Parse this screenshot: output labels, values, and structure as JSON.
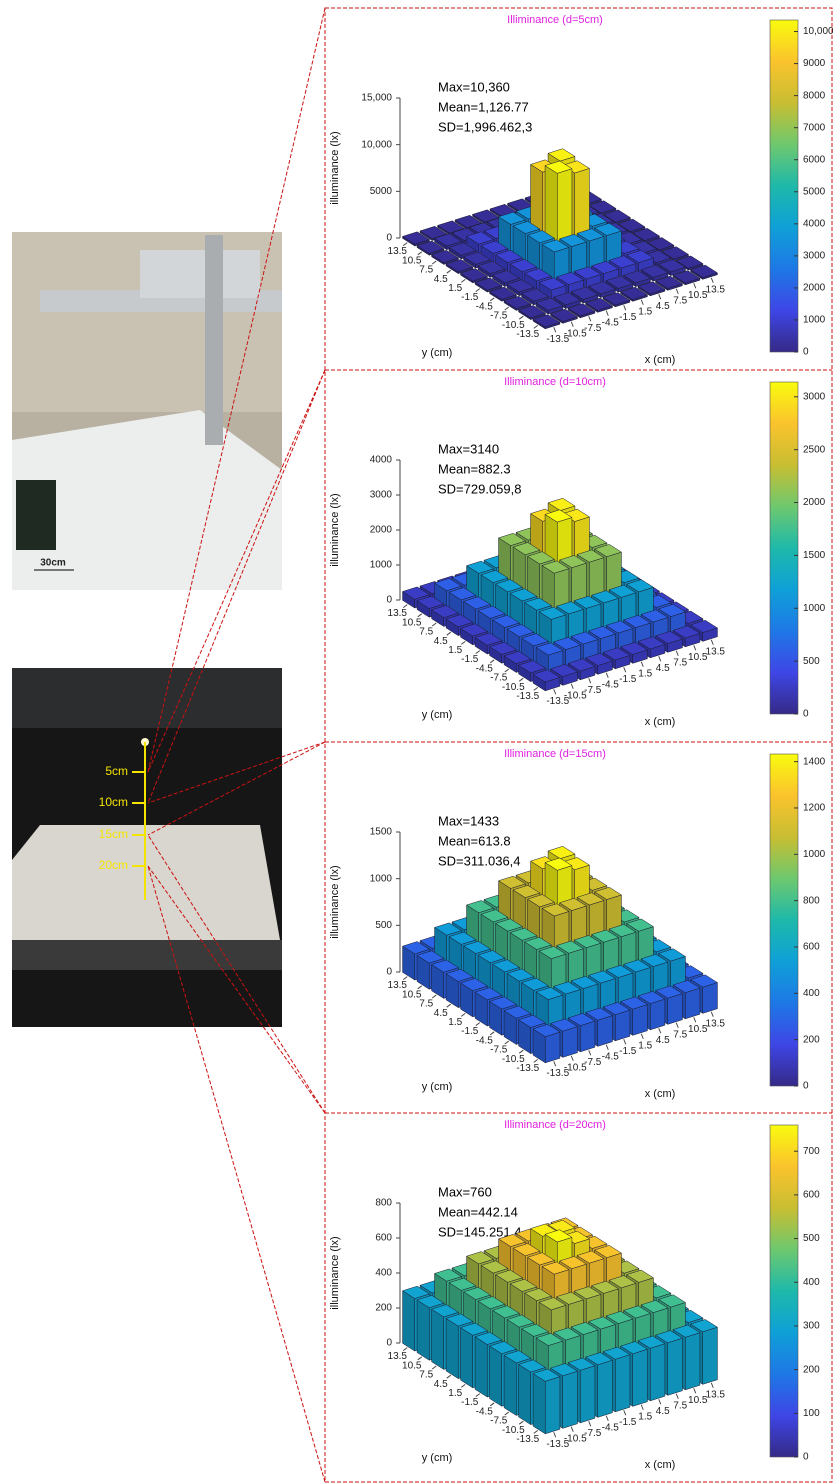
{
  "left_photos": {
    "scale_label": "30cm",
    "height_labels": [
      "5cm",
      "10cm",
      "15cm",
      "20cm"
    ]
  },
  "chart_data": [
    {
      "type": "bar3d",
      "title": "Illiminance (d=5cm)",
      "annotations": [
        "Max=10,360",
        "Mean=1,126.77",
        "SD=1,996.462,3"
      ],
      "xlabel": "x (cm)",
      "ylabel": "y (cm)",
      "zlabel": "illuminance (lx)",
      "x": [
        -13.5,
        -10.5,
        -7.5,
        -4.5,
        -1.5,
        1.5,
        4.5,
        7.5,
        10.5,
        13.5
      ],
      "y": [
        -13.5,
        -10.5,
        -7.5,
        -4.5,
        -1.5,
        1.5,
        4.5,
        7.5,
        10.5,
        13.5
      ],
      "xticks": [
        -13.5,
        -10.5,
        -7.5,
        -4.5,
        -1.5,
        1.5,
        4.5,
        7.5,
        10.5,
        13.5
      ],
      "yticks": [
        -13.5,
        -10.5,
        -7.5,
        -4.5,
        -1.5,
        1.5,
        4.5,
        7.5,
        10.5,
        13.5
      ],
      "zlim": [
        0,
        15000
      ],
      "zticks": [
        0,
        5000,
        {
          "value": 10000,
          "label": "10,000"
        },
        {
          "value": 15000,
          "label": "15,000"
        }
      ],
      "values": [
        [
          200,
          200,
          200,
          200,
          200,
          200,
          200,
          200,
          200,
          200
        ],
        [
          200,
          400,
          400,
          400,
          400,
          400,
          400,
          400,
          400,
          200
        ],
        [
          200,
          400,
          1000,
          1000,
          1000,
          1000,
          1000,
          1000,
          400,
          200
        ],
        [
          200,
          400,
          1000,
          3500,
          3500,
          3500,
          3500,
          1000,
          400,
          200
        ],
        [
          200,
          400,
          1000,
          3500,
          10360,
          9800,
          3500,
          1000,
          400,
          200
        ],
        [
          200,
          400,
          1000,
          3500,
          9500,
          10100,
          3500,
          1000,
          400,
          200
        ],
        [
          200,
          400,
          1000,
          3500,
          3500,
          3500,
          3500,
          1000,
          400,
          200
        ],
        [
          200,
          400,
          1000,
          1000,
          1000,
          1000,
          1000,
          1000,
          400,
          200
        ],
        [
          200,
          400,
          400,
          400,
          400,
          400,
          400,
          400,
          400,
          200
        ],
        [
          200,
          200,
          200,
          200,
          200,
          200,
          200,
          200,
          200,
          200
        ]
      ],
      "colormap": "parula",
      "clim": [
        0,
        10360
      ],
      "cticks": [
        0,
        1000,
        2000,
        3000,
        4000,
        5000,
        6000,
        7000,
        8000,
        9000,
        {
          "value": 10000,
          "label": "10,000"
        }
      ]
    },
    {
      "type": "bar3d",
      "title": "Illiminance (d=10cm)",
      "annotations": [
        "Max=3140",
        "Mean=882.3",
        "SD=729.059,8"
      ],
      "xlabel": "x (cm)",
      "ylabel": "y (cm)",
      "zlabel": "illuminance (lx)",
      "x": [
        -13.5,
        -10.5,
        -7.5,
        -4.5,
        -1.5,
        1.5,
        4.5,
        7.5,
        10.5,
        13.5
      ],
      "y": [
        -13.5,
        -10.5,
        -7.5,
        -4.5,
        -1.5,
        1.5,
        4.5,
        7.5,
        10.5,
        13.5
      ],
      "xticks": [
        -13.5,
        -10.5,
        -7.5,
        -4.5,
        -1.5,
        1.5,
        4.5,
        7.5,
        10.5,
        13.5
      ],
      "yticks": [
        -13.5,
        -10.5,
        -7.5,
        -4.5,
        -1.5,
        1.5,
        4.5,
        7.5,
        10.5,
        13.5
      ],
      "zlim": [
        0,
        4000
      ],
      "zticks": [
        0,
        1000,
        2000,
        3000,
        4000
      ],
      "values": [
        [
          250,
          250,
          250,
          250,
          250,
          250,
          250,
          250,
          250,
          250
        ],
        [
          250,
          600,
          600,
          600,
          600,
          600,
          600,
          600,
          600,
          250
        ],
        [
          250,
          600,
          1200,
          1200,
          1200,
          1200,
          1200,
          1200,
          600,
          250
        ],
        [
          250,
          600,
          1200,
          2100,
          2100,
          2100,
          2100,
          1200,
          600,
          250
        ],
        [
          250,
          600,
          1200,
          2100,
          3140,
          3000,
          2100,
          1200,
          600,
          250
        ],
        [
          250,
          600,
          1200,
          2100,
          2900,
          3050,
          2100,
          1200,
          600,
          250
        ],
        [
          250,
          600,
          1200,
          2100,
          2100,
          2100,
          2100,
          1200,
          600,
          250
        ],
        [
          250,
          600,
          1200,
          1200,
          1200,
          1200,
          1200,
          1200,
          600,
          250
        ],
        [
          250,
          600,
          600,
          600,
          600,
          600,
          600,
          600,
          600,
          250
        ],
        [
          250,
          250,
          250,
          250,
          250,
          250,
          250,
          250,
          250,
          250
        ]
      ],
      "colormap": "parula",
      "clim": [
        0,
        3140
      ],
      "cticks": [
        0,
        500,
        1000,
        1500,
        2000,
        2500,
        3000
      ]
    },
    {
      "type": "bar3d",
      "title": "Illiminance (d=15cm)",
      "annotations": [
        "Max=1433",
        "Mean=613.8",
        "SD=311.036,4"
      ],
      "xlabel": "x (cm)",
      "ylabel": "y (cm)",
      "zlabel": "illuminance (lx)",
      "x": [
        -13.5,
        -10.5,
        -7.5,
        -4.5,
        -1.5,
        1.5,
        4.5,
        7.5,
        10.5,
        13.5
      ],
      "y": [
        -13.5,
        -10.5,
        -7.5,
        -4.5,
        -1.5,
        1.5,
        4.5,
        7.5,
        10.5,
        13.5
      ],
      "xticks": [
        -13.5,
        -10.5,
        -7.5,
        -4.5,
        -1.5,
        1.5,
        4.5,
        7.5,
        10.5,
        13.5
      ],
      "yticks": [
        -13.5,
        -10.5,
        -7.5,
        -4.5,
        -1.5,
        1.5,
        4.5,
        7.5,
        10.5,
        13.5
      ],
      "zlim": [
        0,
        1500
      ],
      "zticks": [
        0,
        500,
        1000,
        1500
      ],
      "values": [
        [
          280,
          280,
          280,
          280,
          280,
          280,
          280,
          280,
          280,
          280
        ],
        [
          280,
          520,
          520,
          520,
          520,
          520,
          520,
          520,
          520,
          280
        ],
        [
          280,
          520,
          800,
          800,
          800,
          800,
          800,
          800,
          520,
          280
        ],
        [
          280,
          520,
          800,
          1100,
          1100,
          1100,
          1100,
          800,
          520,
          280
        ],
        [
          280,
          520,
          800,
          1100,
          1433,
          1380,
          1100,
          800,
          520,
          280
        ],
        [
          280,
          520,
          800,
          1100,
          1350,
          1400,
          1100,
          800,
          520,
          280
        ],
        [
          280,
          520,
          800,
          1100,
          1100,
          1100,
          1100,
          800,
          520,
          280
        ],
        [
          280,
          520,
          800,
          800,
          800,
          800,
          800,
          800,
          520,
          280
        ],
        [
          280,
          520,
          520,
          520,
          520,
          520,
          520,
          520,
          520,
          280
        ],
        [
          280,
          280,
          280,
          280,
          280,
          280,
          280,
          280,
          280,
          280
        ]
      ],
      "colormap": "parula",
      "clim": [
        0,
        1433
      ],
      "cticks": [
        0,
        200,
        400,
        600,
        800,
        1000,
        1200,
        1400
      ]
    },
    {
      "type": "bar3d",
      "title": "Illiminance (d=20cm)",
      "annotations": [
        "Max=760",
        "Mean=442.14",
        "SD=145.251,4"
      ],
      "xlabel": "x (cm)",
      "ylabel": "y (cm)",
      "zlabel": "illuminance (lx)",
      "x": [
        -13.5,
        -10.5,
        -7.5,
        -4.5,
        -1.5,
        1.5,
        4.5,
        7.5,
        10.5,
        13.5
      ],
      "y": [
        -13.5,
        -10.5,
        -7.5,
        -4.5,
        -1.5,
        1.5,
        4.5,
        7.5,
        10.5,
        13.5
      ],
      "xticks": [
        -13.5,
        -10.5,
        -7.5,
        -4.5,
        -1.5,
        1.5,
        4.5,
        7.5,
        10.5,
        13.5
      ],
      "yticks": [
        -13.5,
        -10.5,
        -7.5,
        -4.5,
        -1.5,
        1.5,
        4.5,
        7.5,
        10.5,
        13.5
      ],
      "zlim": [
        0,
        800
      ],
      "zticks": [
        0,
        200,
        400,
        600,
        800
      ],
      "values": [
        [
          300,
          300,
          300,
          300,
          300,
          300,
          300,
          300,
          300,
          300
        ],
        [
          300,
          420,
          420,
          420,
          420,
          420,
          420,
          420,
          420,
          300
        ],
        [
          300,
          420,
          540,
          540,
          540,
          540,
          540,
          540,
          420,
          300
        ],
        [
          300,
          420,
          540,
          660,
          660,
          660,
          660,
          540,
          420,
          300
        ],
        [
          300,
          420,
          540,
          660,
          760,
          720,
          660,
          540,
          420,
          300
        ],
        [
          300,
          420,
          540,
          660,
          740,
          730,
          660,
          540,
          420,
          300
        ],
        [
          300,
          420,
          540,
          660,
          660,
          660,
          660,
          540,
          420,
          300
        ],
        [
          300,
          420,
          540,
          540,
          540,
          540,
          540,
          540,
          420,
          300
        ],
        [
          300,
          420,
          420,
          420,
          420,
          420,
          420,
          420,
          420,
          300
        ],
        [
          300,
          300,
          300,
          300,
          300,
          300,
          300,
          300,
          300,
          300
        ]
      ],
      "colormap": "parula",
      "clim": [
        0,
        760
      ],
      "cticks": [
        0,
        100,
        200,
        300,
        400,
        500,
        600,
        700
      ]
    }
  ]
}
